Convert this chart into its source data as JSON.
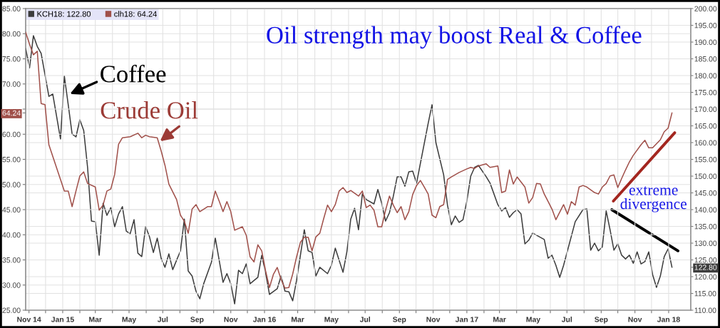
{
  "chart_data": {
    "type": "line",
    "title": "Oil strength may boost Real & Coffee",
    "annotations": [
      {
        "text": "Coffee",
        "x": "2015-01-14",
        "y": 68.0
      },
      {
        "text": "Crude Oil",
        "x": "2015-06-26",
        "y": 58.6
      },
      "extreme\ndivergence"
    ],
    "xlim": [
      "2014-10-26",
      "2018-02-10"
    ],
    "xticks": [
      {
        "value": "2014-11-01",
        "label": "Nov 14"
      },
      {
        "value": "2014-12-01",
        "label": null
      },
      {
        "value": "2015-01-01",
        "label": "Jan 15"
      },
      {
        "value": "2015-02-01",
        "label": null
      },
      {
        "value": "2015-03-01",
        "label": "Mar"
      },
      {
        "value": "2015-04-01",
        "label": null
      },
      {
        "value": "2015-05-01",
        "label": "May"
      },
      {
        "value": "2015-06-01",
        "label": null
      },
      {
        "value": "2015-07-01",
        "label": "Jul"
      },
      {
        "value": "2015-08-01",
        "label": null
      },
      {
        "value": "2015-09-01",
        "label": "Sep"
      },
      {
        "value": "2015-10-01",
        "label": null
      },
      {
        "value": "2015-11-01",
        "label": "Nov"
      },
      {
        "value": "2015-12-01",
        "label": null
      },
      {
        "value": "2016-01-01",
        "label": "Jan 16"
      },
      {
        "value": "2016-02-01",
        "label": null
      },
      {
        "value": "2016-03-01",
        "label": "Mar"
      },
      {
        "value": "2016-04-01",
        "label": null
      },
      {
        "value": "2016-05-01",
        "label": "May"
      },
      {
        "value": "2016-06-01",
        "label": null
      },
      {
        "value": "2016-07-01",
        "label": "Jul"
      },
      {
        "value": "2016-08-01",
        "label": null
      },
      {
        "value": "2016-09-01",
        "label": "Sep"
      },
      {
        "value": "2016-10-01",
        "label": null
      },
      {
        "value": "2016-11-01",
        "label": "Nov"
      },
      {
        "value": "2016-12-01",
        "label": null
      },
      {
        "value": "2017-01-01",
        "label": "Jan 17"
      },
      {
        "value": "2017-02-01",
        "label": null
      },
      {
        "value": "2017-03-01",
        "label": "Mar"
      },
      {
        "value": "2017-04-01",
        "label": null
      },
      {
        "value": "2017-05-01",
        "label": "May"
      },
      {
        "value": "2017-06-01",
        "label": null
      },
      {
        "value": "2017-07-01",
        "label": "Jul"
      },
      {
        "value": "2017-08-01",
        "label": null
      },
      {
        "value": "2017-09-01",
        "label": "Sep"
      },
      {
        "value": "2017-10-01",
        "label": null
      },
      {
        "value": "2017-11-01",
        "label": "Nov"
      },
      {
        "value": "2017-12-01",
        "label": null
      },
      {
        "value": "2018-01-01",
        "label": "Jan 18"
      }
    ],
    "ylim": [
      25,
      85
    ],
    "yticks": [
      {
        "value": 25,
        "label": "25.00"
      },
      {
        "value": 30,
        "label": "30.00"
      },
      {
        "value": 35,
        "label": "35.00"
      },
      {
        "value": 40,
        "label": "40.00"
      },
      {
        "value": 45,
        "label": "45.00"
      },
      {
        "value": 50,
        "label": "50.00"
      },
      {
        "value": 55,
        "label": "55.00"
      },
      {
        "value": 60,
        "label": "60.00"
      },
      {
        "value": 64.24,
        "label": "64.24"
      },
      {
        "value": 65,
        "label": null
      },
      {
        "value": 70,
        "label": "70.00"
      },
      {
        "value": 75,
        "label": "75.00"
      },
      {
        "value": 80,
        "label": "80.00"
      },
      {
        "value": 85,
        "label": "85.00"
      }
    ],
    "y2lim": [
      110,
      200
    ],
    "y2ticks": [
      {
        "value": 110,
        "label": "110.00"
      },
      {
        "value": 115,
        "label": "115.00"
      },
      {
        "value": 120,
        "label": "120.00"
      },
      {
        "value": 122.8,
        "label": "122.80"
      },
      {
        "value": 125,
        "label": "125.00"
      },
      {
        "value": 130,
        "label": "130.00"
      },
      {
        "value": 135,
        "label": "135.00"
      },
      {
        "value": 140,
        "label": "140.00"
      },
      {
        "value": 145,
        "label": "145.00"
      },
      {
        "value": 150,
        "label": "150.00"
      },
      {
        "value": 155,
        "label": "155.00"
      },
      {
        "value": 160,
        "label": "160.00"
      },
      {
        "value": 165,
        "label": "165.00"
      },
      {
        "value": 170,
        "label": "170.00"
      },
      {
        "value": 175,
        "label": "175.00"
      },
      {
        "value": 180,
        "label": "180.00"
      },
      {
        "value": 185,
        "label": "185.00"
      },
      {
        "value": 190,
        "label": "190.00"
      },
      {
        "value": 195,
        "label": "195.00"
      },
      {
        "value": 200,
        "label": "200.00"
      }
    ],
    "grid": true,
    "legend": "top left",
    "series": [
      {
        "name": "KCH18: 122.80",
        "color": "#3c3c3c",
        "axis": "y2",
        "x": [
          "2014-10-26",
          "2014-11-02",
          "2014-11-09",
          "2014-11-16",
          "2014-11-23",
          "2014-12-07",
          "2014-12-14",
          "2014-12-28",
          "2015-01-04",
          "2015-01-11",
          "2015-01-18",
          "2015-01-25",
          "2015-02-01",
          "2015-02-08",
          "2015-02-15",
          "2015-02-22",
          "2015-03-01",
          "2015-03-08",
          "2015-03-15",
          "2015-03-22",
          "2015-03-29",
          "2015-04-05",
          "2015-04-12",
          "2015-04-19",
          "2015-04-26",
          "2015-05-03",
          "2015-05-10",
          "2015-05-17",
          "2015-05-24",
          "2015-05-31",
          "2015-06-07",
          "2015-06-14",
          "2015-06-21",
          "2015-06-28",
          "2015-07-05",
          "2015-07-12",
          "2015-07-19",
          "2015-08-02",
          "2015-08-09",
          "2015-08-16",
          "2015-08-23",
          "2015-08-30",
          "2015-09-06",
          "2015-09-13",
          "2015-09-27",
          "2015-10-04",
          "2015-10-18",
          "2015-10-25",
          "2015-11-01",
          "2015-11-08",
          "2015-11-15",
          "2015-11-22",
          "2015-11-29",
          "2015-12-06",
          "2015-12-20",
          "2015-12-27",
          "2016-01-03",
          "2016-01-10",
          "2016-01-24",
          "2016-01-31",
          "2016-02-07",
          "2016-02-14",
          "2016-02-21",
          "2016-02-28",
          "2016-03-13",
          "2016-03-20",
          "2016-03-27",
          "2016-04-03",
          "2016-04-10",
          "2016-04-24",
          "2016-05-01",
          "2016-05-08",
          "2016-05-15",
          "2016-05-22",
          "2016-05-29",
          "2016-06-05",
          "2016-06-12",
          "2016-06-19",
          "2016-06-26",
          "2016-07-03",
          "2016-07-17",
          "2016-07-24",
          "2016-07-31",
          "2016-08-07",
          "2016-08-14",
          "2016-08-21",
          "2016-08-28",
          "2016-09-04",
          "2016-09-11",
          "2016-09-18",
          "2016-09-25",
          "2016-10-02",
          "2016-10-23",
          "2016-10-30",
          "2016-11-06",
          "2016-11-20",
          "2016-11-27",
          "2016-12-04",
          "2016-12-11",
          "2016-12-18",
          "2016-12-25",
          "2017-01-01",
          "2017-01-08",
          "2017-01-15",
          "2017-01-22",
          "2017-02-05",
          "2017-02-12",
          "2017-02-26",
          "2017-03-05",
          "2017-03-12",
          "2017-03-19",
          "2017-03-26",
          "2017-04-02",
          "2017-04-09",
          "2017-04-16",
          "2017-04-23",
          "2017-04-30",
          "2017-05-21",
          "2017-05-28",
          "2017-06-04",
          "2017-06-11",
          "2017-06-18",
          "2017-06-25",
          "2017-07-16",
          "2017-07-30",
          "2017-08-06",
          "2017-08-13",
          "2017-08-20",
          "2017-08-27",
          "2017-09-03",
          "2017-09-10",
          "2017-09-17",
          "2017-09-24",
          "2017-10-01",
          "2017-10-08",
          "2017-10-15",
          "2017-10-22",
          "2017-10-29",
          "2017-11-05",
          "2017-11-12",
          "2017-11-19",
          "2017-11-26",
          "2017-12-03",
          "2017-12-10",
          "2017-12-17",
          "2017-12-24",
          "2017-12-31",
          "2018-01-07"
        ],
        "values": [
          188.1,
          182.3,
          191.9,
          188.7,
          186.6,
          173.8,
          174.5,
          161.1,
          179.8,
          171.3,
          162.6,
          161.7,
          166.8,
          163.6,
          152.6,
          136.6,
          136.4,
          126.4,
          141.9,
          138.3,
          140.6,
          134.9,
          138.7,
          140.9,
          133.6,
          132.8,
          137.0,
          127.0,
          126.0,
          134.9,
          131.9,
          127.2,
          131.5,
          125.5,
          122.8,
          126.8,
          122.1,
          127.7,
          137.2,
          121.7,
          120.2,
          115.7,
          113.4,
          117.9,
          124.3,
          131.5,
          118.3,
          120.9,
          117.9,
          111.9,
          121.9,
          120.9,
          123.8,
          117.9,
          119.8,
          126.4,
          121.1,
          114.7,
          116.4,
          120.2,
          115.7,
          115.5,
          112.8,
          118.9,
          134.0,
          127.7,
          127.2,
          120.2,
          122.8,
          120.9,
          123.4,
          128.5,
          124.9,
          121.3,
          127.4,
          137.2,
          140.4,
          134.0,
          144.7,
          143.0,
          141.7,
          146.0,
          141.9,
          136.6,
          139.1,
          144.0,
          149.8,
          149.8,
          147.0,
          151.3,
          151.5,
          147.9,
          165.7,
          171.3,
          160.0,
          150.4,
          141.3,
          135.5,
          138.1,
          136.2,
          137.0,
          142.6,
          150.0,
          152.6,
          153.2,
          149.8,
          147.9,
          141.5,
          139.6,
          140.6,
          137.7,
          139.1,
          140.0,
          138.7,
          129.8,
          130.9,
          133.0,
          131.1,
          125.5,
          126.4,
          123.4,
          119.8,
          123.4,
          136.4,
          140.0,
          140.2,
          127.9,
          130.0,
          127.7,
          128.9,
          139.6,
          134.0,
          127.9,
          129.8,
          126.4,
          125.3,
          126.4,
          124.0,
          127.4,
          123.8,
          124.5,
          127.4,
          120.6,
          116.8,
          120.2,
          126.0,
          128.3,
          122.8
        ]
      },
      {
        "name": "clh18: 64.24",
        "color": "#a0504a",
        "x": [
          "2014-10-26",
          "2014-11-02",
          "2014-11-09",
          "2014-11-16",
          "2014-11-23",
          "2014-11-30",
          "2014-12-07",
          "2014-12-28",
          "2015-01-04",
          "2015-01-11",
          "2015-01-18",
          "2015-01-25",
          "2015-02-01",
          "2015-02-08",
          "2015-02-15",
          "2015-03-01",
          "2015-03-08",
          "2015-03-15",
          "2015-03-22",
          "2015-03-29",
          "2015-04-05",
          "2015-04-12",
          "2015-04-19",
          "2015-05-03",
          "2015-05-17",
          "2015-05-24",
          "2015-05-31",
          "2015-06-07",
          "2015-06-21",
          "2015-06-28",
          "2015-07-05",
          "2015-07-12",
          "2015-07-26",
          "2015-08-02",
          "2015-08-09",
          "2015-08-16",
          "2015-08-23",
          "2015-08-30",
          "2015-09-06",
          "2015-09-20",
          "2015-09-27",
          "2015-10-04",
          "2015-10-11",
          "2015-10-18",
          "2015-10-25",
          "2015-11-01",
          "2015-11-08",
          "2015-11-22",
          "2015-11-29",
          "2015-12-06",
          "2015-12-13",
          "2015-12-20",
          "2015-12-27",
          "2016-01-03",
          "2016-01-10",
          "2016-01-17",
          "2016-01-24",
          "2016-01-31",
          "2016-02-07",
          "2016-02-14",
          "2016-02-21",
          "2016-02-28",
          "2016-03-06",
          "2016-03-13",
          "2016-03-20",
          "2016-03-27",
          "2016-04-03",
          "2016-04-10",
          "2016-04-17",
          "2016-04-24",
          "2016-05-01",
          "2016-05-08",
          "2016-05-15",
          "2016-05-22",
          "2016-05-29",
          "2016-06-05",
          "2016-06-19",
          "2016-06-26",
          "2016-07-03",
          "2016-07-10",
          "2016-07-17",
          "2016-07-24",
          "2016-07-31",
          "2016-08-07",
          "2016-08-14",
          "2016-08-21",
          "2016-08-28",
          "2016-09-04",
          "2016-09-11",
          "2016-09-18",
          "2016-09-25",
          "2016-10-02",
          "2016-10-09",
          "2016-10-16",
          "2016-10-23",
          "2016-10-30",
          "2016-11-06",
          "2016-11-13",
          "2016-11-20",
          "2016-11-27",
          "2016-12-04",
          "2016-12-18",
          "2017-01-01",
          "2017-01-08",
          "2017-01-15",
          "2017-01-22",
          "2017-02-05",
          "2017-02-12",
          "2017-02-26",
          "2017-03-05",
          "2017-03-12",
          "2017-03-19",
          "2017-03-26",
          "2017-04-02",
          "2017-04-09",
          "2017-04-16",
          "2017-04-23",
          "2017-04-30",
          "2017-05-07",
          "2017-05-14",
          "2017-05-21",
          "2017-05-28",
          "2017-06-04",
          "2017-06-11",
          "2017-06-25",
          "2017-07-02",
          "2017-07-09",
          "2017-07-16",
          "2017-07-23",
          "2017-07-30",
          "2017-08-06",
          "2017-08-20",
          "2017-08-27",
          "2017-09-03",
          "2017-09-10",
          "2017-09-17",
          "2017-09-24",
          "2017-10-01",
          "2017-10-08",
          "2017-10-15",
          "2017-10-22",
          "2017-10-29",
          "2017-11-12",
          "2017-11-19",
          "2017-11-26",
          "2017-12-03",
          "2017-12-17",
          "2017-12-24",
          "2017-12-31",
          "2018-01-07"
        ],
        "values": [
          80.3,
          77.9,
          75.8,
          76.5,
          66.1,
          65.9,
          57.9,
          51.0,
          48.7,
          48.7,
          45.6,
          48.7,
          51.7,
          52.5,
          50.2,
          49.5,
          44.9,
          45.9,
          48.7,
          49.1,
          52.0,
          58.0,
          59.3,
          59.5,
          60.2,
          59.3,
          59.8,
          59.5,
          59.3,
          56.7,
          53.8,
          50.1,
          47.0,
          43.9,
          42.7,
          40.3,
          45.1,
          46.0,
          44.6,
          45.6,
          45.6,
          48.7,
          46.7,
          44.6,
          46.6,
          44.6,
          40.9,
          41.6,
          39.9,
          35.6,
          34.6,
          38.0,
          36.8,
          32.8,
          29.5,
          32.1,
          33.5,
          31.1,
          29.4,
          29.5,
          32.2,
          35.6,
          38.5,
          39.5,
          39.5,
          36.8,
          39.6,
          40.3,
          43.2,
          45.9,
          44.6,
          46.0,
          48.7,
          49.4,
          48.4,
          48.8,
          47.7,
          48.7,
          45.4,
          45.9,
          44.9,
          41.6,
          41.6,
          44.9,
          47.7,
          45.9,
          44.4,
          45.6,
          43.0,
          44.6,
          48.0,
          49.8,
          50.8,
          49.5,
          48.1,
          43.9,
          43.4,
          45.6,
          46.0,
          51.0,
          51.5,
          52.4,
          53.1,
          53.4,
          53.2,
          53.7,
          54.1,
          53.4,
          53.7,
          48.4,
          48.7,
          52.9,
          50.1,
          51.5,
          50.5,
          49.5,
          46.3,
          47.4,
          50.2,
          50.1,
          48.1,
          46.6,
          45.1,
          43.0,
          46.0,
          44.1,
          46.6,
          45.9,
          49.5,
          49.8,
          49.5,
          48.4,
          48.1,
          49.5,
          50.2,
          51.7,
          51.9,
          49.4,
          51.2,
          52.9,
          54.5,
          55.8,
          57.9,
          58.8,
          57.3,
          57.3,
          58.9,
          60.5,
          61.2,
          64.24
        ]
      },
      {
        "color": "#a3261f",
        "x": [
          "2017-09-23",
          "2018-01-12"
        ],
        "values": [
          46.7,
          60.3
        ]
      },
      {
        "color": "#000000",
        "axis": "y2",
        "x": [
          "2017-09-20",
          "2018-01-18"
        ],
        "values": [
          140.0,
          127.7
        ]
      }
    ]
  }
}
